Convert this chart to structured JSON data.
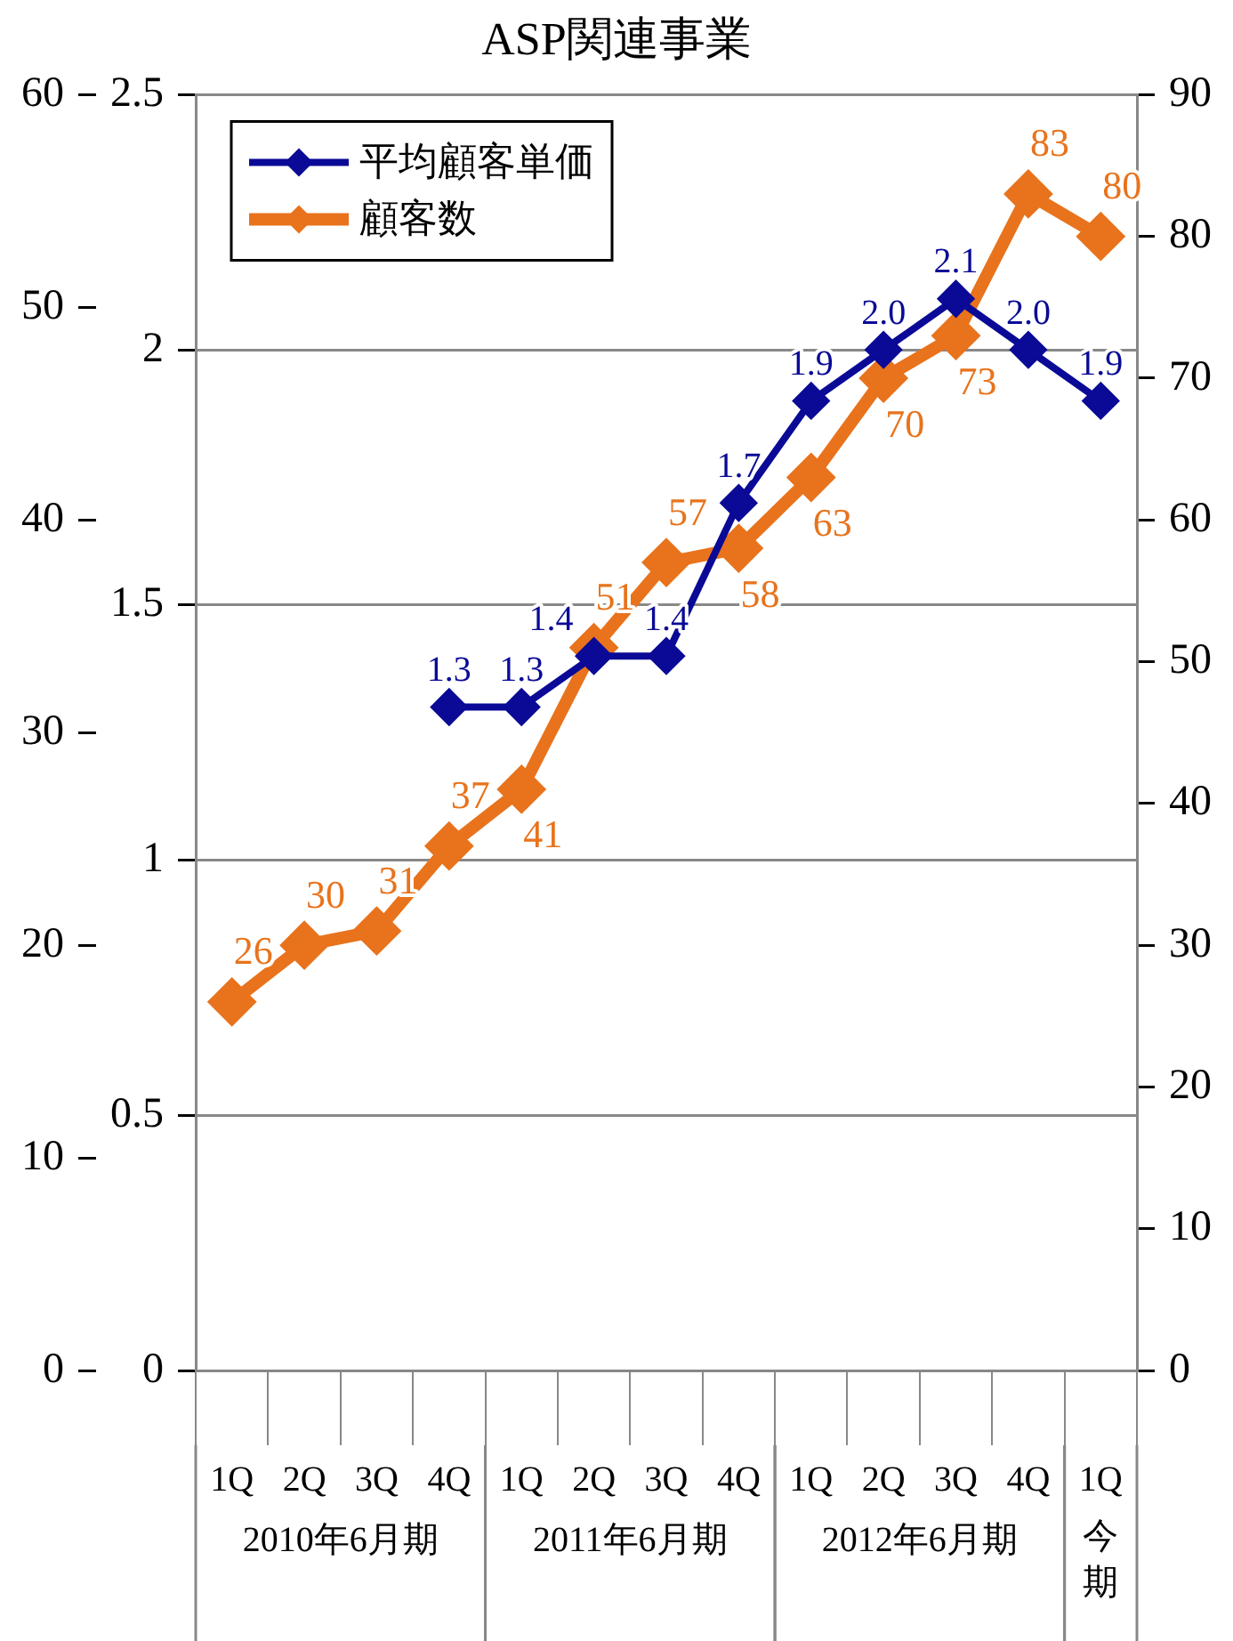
{
  "chart_data": {
    "type": "line",
    "title": "ASP関連事業",
    "categories": [
      "1Q",
      "2Q",
      "3Q",
      "4Q",
      "1Q",
      "2Q",
      "3Q",
      "4Q",
      "1Q",
      "2Q",
      "3Q",
      "4Q",
      "1Q"
    ],
    "annotations": [
      "2010年6月期",
      "2011年6月期",
      "2012年6月期",
      "今期"
    ],
    "series": [
      {
        "name": "平均顧客単価",
        "color": "#0a0a96",
        "values": [
          null,
          null,
          null,
          1.3,
          1.3,
          1.4,
          1.4,
          1.7,
          1.9,
          2.0,
          2.1,
          2.0,
          1.9
        ],
        "value_labels": [
          null,
          null,
          null,
          "1.3",
          "1.3",
          "1.4",
          "1.4",
          "1.7",
          "1.9",
          "2.0",
          "2.1",
          "2.0",
          "1.9"
        ]
      },
      {
        "name": "顧客数",
        "color": "#e8731c",
        "axis": "y2",
        "values": [
          26,
          30,
          31,
          37,
          41,
          51,
          57,
          58,
          63,
          70,
          73,
          83,
          80
        ],
        "data_labels": true
      }
    ],
    "ylim": [
      0,
      2.5
    ],
    "yticks": [
      0,
      0.5,
      1,
      1.5,
      2,
      2.5
    ],
    "y2lim": [
      0,
      90
    ],
    "y2ticks": [
      0,
      10,
      20,
      30,
      40,
      50,
      60,
      70,
      80,
      90
    ],
    "y3lim": [
      0,
      60
    ],
    "y3ticks": [
      0,
      10,
      20,
      30,
      40,
      50,
      60
    ],
    "grid": "y",
    "legend": "top left",
    "marker": "diamond",
    "line_style": "solid"
  }
}
